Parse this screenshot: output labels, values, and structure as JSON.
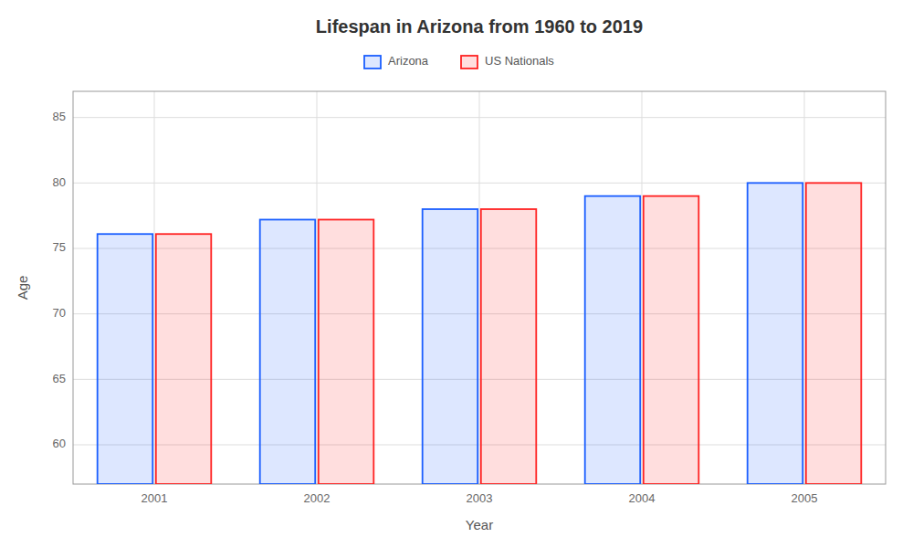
{
  "chart_data": {
    "type": "bar",
    "title": "Lifespan in Arizona from 1960 to 2019",
    "xlabel": "Year",
    "ylabel": "Age",
    "categories": [
      "2001",
      "2002",
      "2003",
      "2004",
      "2005"
    ],
    "series": [
      {
        "name": "Arizona",
        "color": "#1a5eff",
        "values": [
          76.1,
          77.2,
          78.0,
          79.0,
          80.0
        ]
      },
      {
        "name": "US Nationals",
        "color": "#ff2222",
        "values": [
          76.1,
          77.2,
          78.0,
          79.0,
          80.0
        ]
      }
    ],
    "ylim": [
      57,
      87
    ],
    "yticks": [
      60,
      65,
      70,
      75,
      80,
      85
    ],
    "grid": true,
    "legend": "top"
  }
}
